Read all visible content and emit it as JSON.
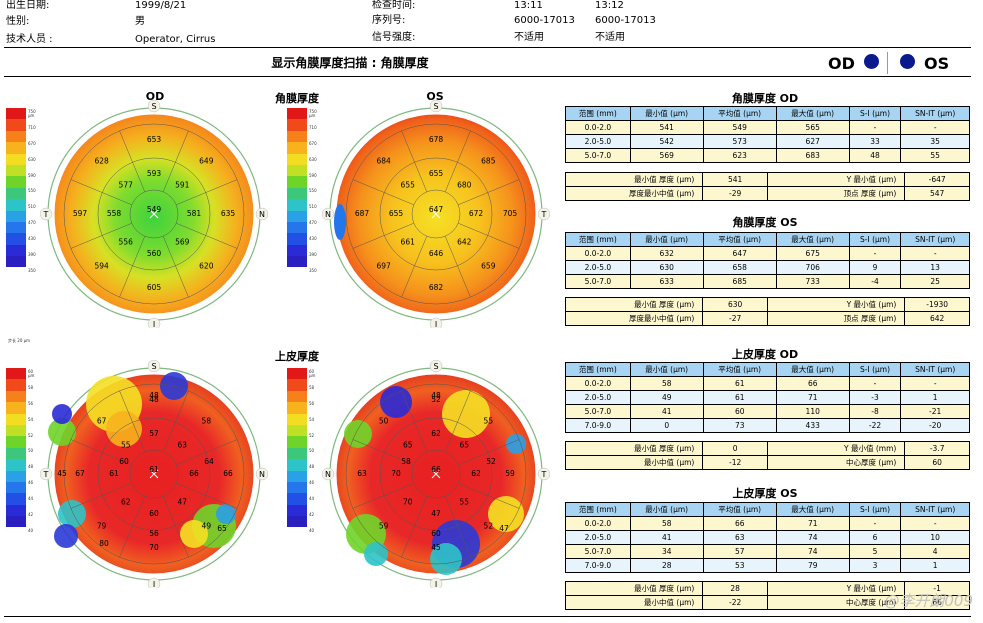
{
  "header": {
    "dob_label": "出生日期:",
    "dob": "1999/8/21",
    "gender_label": "性别:",
    "gender": "男",
    "tech_label": "技术人员 :",
    "tech": "Operator, Cirrus",
    "exam_time_label": "检查时间:",
    "exam_time_od": "13:11",
    "exam_time_os": "13:12",
    "serial_label": "序列号:",
    "serial_od": "6000-17013",
    "serial_os": "6000-17013",
    "signal_label": "信号强度:",
    "signal_od": "不适用",
    "signal_os": "不适用"
  },
  "page_title": "显示角膜厚度扫描 : 角膜厚度",
  "eyes": {
    "od": "OD",
    "os": "OS"
  },
  "pachy": {
    "section_label": "角膜厚度",
    "scale_top": "750 μm",
    "scale_ticks": [
      "750 μm",
      "710",
      "670",
      "630",
      "590",
      "550",
      "510",
      "470",
      "430",
      "390",
      "350"
    ],
    "step": "步长 20 μm",
    "od_label": "OD",
    "os_label": "OS",
    "od_values": {
      "center": "549",
      "inner": [
        "593",
        "591",
        "581",
        "569",
        "560",
        "556",
        "558",
        "577"
      ],
      "outer": [
        "653",
        "649",
        "635",
        "620",
        "605",
        "594",
        "597",
        "628"
      ]
    },
    "os_values": {
      "center": "647",
      "inner": [
        "655",
        "680",
        "672",
        "642",
        "646",
        "661",
        "655",
        "655"
      ],
      "outer": [
        "678",
        "685",
        "705",
        "659",
        "682",
        "697",
        "687",
        "684"
      ]
    }
  },
  "epi": {
    "section_label": "上皮厚度",
    "scale_top": "60 μm",
    "scale_ticks": [
      "60 μm",
      "58",
      "56",
      "54",
      "52",
      "50",
      "48",
      "46",
      "44",
      "42",
      "40"
    ],
    "od_values": {
      "center": "61",
      "inner": [
        "57",
        "63",
        "66",
        "47",
        "60",
        "62",
        "61",
        "55"
      ],
      "outer": [
        "48",
        "58",
        "66",
        "49",
        "70",
        "79",
        "67",
        "67"
      ],
      "extra": [
        "48",
        "60",
        "56",
        "64",
        "65",
        "45",
        "80"
      ]
    },
    "os_values": {
      "center": "66",
      "inner": [
        "62",
        "65",
        "62",
        "55",
        "47",
        "70",
        "70",
        "65"
      ],
      "outer": [
        "52",
        "55",
        "59",
        "52",
        "45",
        "59",
        "63",
        "50"
      ],
      "extra": [
        "48",
        "58",
        "60",
        "52",
        "47"
      ]
    }
  },
  "compass": {
    "s": "S",
    "i": "I",
    "t": "T",
    "n": "N"
  },
  "tables": {
    "pachy_od": {
      "title": "角膜厚度 OD",
      "cols": [
        "范围 (mm)",
        "最小值 (μm)",
        "平均值 (μm)",
        "最大值 (μm)",
        "S-I (μm)",
        "SN-IT (μm)"
      ],
      "rows": [
        [
          "0.0-2.0",
          "541",
          "549",
          "565",
          "-",
          "-"
        ],
        [
          "2.0-5.0",
          "542",
          "573",
          "627",
          "33",
          "35"
        ],
        [
          "5.0-7.0",
          "569",
          "623",
          "683",
          "48",
          "55"
        ]
      ],
      "stats": [
        [
          "最小值 厚度 (μm)",
          "541",
          "Y 最小值 (μm)",
          "-647"
        ],
        [
          "厚度最小中值 (μm)",
          "-29",
          "顶点 厚度 (μm)",
          "547"
        ]
      ]
    },
    "pachy_os": {
      "title": "角膜厚度 OS",
      "cols": [
        "范围 (mm)",
        "最小值 (μm)",
        "平均值 (μm)",
        "最大值 (μm)",
        "S-I (μm)",
        "SN-IT (μm)"
      ],
      "rows": [
        [
          "0.0-2.0",
          "632",
          "647",
          "675",
          "-",
          "-"
        ],
        [
          "2.0-5.0",
          "630",
          "658",
          "706",
          "9",
          "13"
        ],
        [
          "5.0-7.0",
          "633",
          "685",
          "733",
          "-4",
          "25"
        ]
      ],
      "stats": [
        [
          "最小值 厚度 (μm)",
          "630",
          "Y 最小值 (μm)",
          "-1930"
        ],
        [
          "厚度最小中值 (μm)",
          "-27",
          "顶点 厚度 (μm)",
          "642"
        ]
      ]
    },
    "epi_od": {
      "title": "上皮厚度 OD",
      "cols": [
        "范围 (mm)",
        "最小值 (μm)",
        "平均值 (μm)",
        "最大值 (μm)",
        "S-I (μm)",
        "SN-IT (μm)"
      ],
      "rows": [
        [
          "0.0-2.0",
          "58",
          "61",
          "66",
          "-",
          "-"
        ],
        [
          "2.0-5.0",
          "49",
          "61",
          "71",
          "-3",
          "1"
        ],
        [
          "5.0-7.0",
          "41",
          "60",
          "110",
          "-8",
          "-21"
        ],
        [
          "7.0-9.0",
          "0",
          "73",
          "433",
          "-22",
          "-20"
        ]
      ],
      "stats": [
        [
          "最小值 厚度 (μm)",
          "0",
          "Y 最小值 (mm)",
          "-3.7"
        ],
        [
          "最小中值 (μm)",
          "-12",
          "中心厚度 (μm)",
          "60"
        ]
      ]
    },
    "epi_os": {
      "title": "上皮厚度 OS",
      "cols": [
        "范围 (mm)",
        "最小值 (μm)",
        "平均值 (μm)",
        "最大值 (μm)",
        "S-I (μm)",
        "SN-IT (μm)"
      ],
      "rows": [
        [
          "0.0-2.0",
          "58",
          "66",
          "71",
          "-",
          "-"
        ],
        [
          "2.0-5.0",
          "41",
          "63",
          "74",
          "6",
          "10"
        ],
        [
          "5.0-7.0",
          "34",
          "57",
          "74",
          "5",
          "4"
        ],
        [
          "7.0-9.0",
          "28",
          "53",
          "79",
          "3",
          "1"
        ]
      ],
      "stats": [
        [
          "最小值 厚度 (μm)",
          "28",
          "Y 最小值 (μm)",
          "-1"
        ],
        [
          "最小中值 (μm)",
          "-22",
          "中心厚度 (μm)",
          "66"
        ]
      ]
    }
  },
  "watermark": "@李开朗009"
}
